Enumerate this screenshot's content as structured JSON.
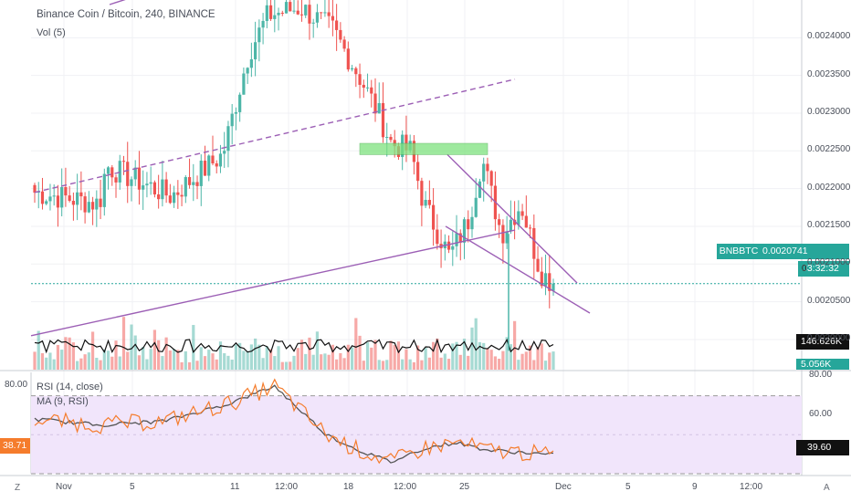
{
  "header": {
    "title": "Binance Coin / Bitcoin, 240, BINANCE",
    "volume_label": "Vol (5)"
  },
  "rsi_header": {
    "label": "RSI (14, close)",
    "ma_label": "MA (9, RSI)"
  },
  "price_scale": {
    "ticks": [
      "0.0024000",
      "0.0023500",
      "0.0023000",
      "0.0022500",
      "0.0022000",
      "0.0021500",
      "0.0021000",
      "0.0020500",
      "0.0020000"
    ]
  },
  "price_labels": {
    "symbol": "BNBBTC",
    "last_price": "0.0020741",
    "countdown": "03:32:32",
    "volume_ma": "146.626K",
    "volume": "5.056K",
    "partial_prefix": "0"
  },
  "rsi_scale": {
    "ticks": [
      "80.00",
      "60.00"
    ],
    "rsi_value": "39.60",
    "left_level": "80.00",
    "left_value": "38.71"
  },
  "time_axis": {
    "labels": [
      "Nov",
      "5",
      "11",
      "12:00",
      "18",
      "12:00",
      "25",
      "Dec",
      "5",
      "9",
      "12:00"
    ]
  },
  "corner_left": "Z",
  "corner_right": "A",
  "colors": {
    "up": "#4db6a8",
    "down": "#ef5350",
    "trendline": "#9c5fb5",
    "zone": "#7ee27e",
    "rsi_band": "#f1e5fb",
    "rsi_line": "#f57c2c",
    "rsi_ma": "#555555",
    "last_price": "#26a69a"
  },
  "chart_data": {
    "type": "candlestick",
    "symbol": "BNBBTC",
    "interval": "240",
    "exchange": "BINANCE",
    "last_close": 0.0020741,
    "price_range": [
      0.00196,
      0.00245
    ],
    "rsi_range": [
      30,
      80
    ],
    "rsi_levels": [
      70,
      30
    ],
    "rsi_last": 39.6,
    "series": [
      {
        "name": "price_anchors",
        "x": [
          0,
          0.1,
          0.11,
          0.21,
          0.29,
          0.33,
          0.36,
          0.41,
          0.46,
          0.5,
          0.53,
          0.55,
          0.58,
          0.6,
          0.64,
          0.67,
          0.69,
          0.72,
          0.75,
          0.78,
          0.8
        ],
        "values": [
          0.002195,
          0.00218,
          0.00223,
          0.00219,
          0.002245,
          0.00238,
          0.00243,
          0.00244,
          0.00241,
          0.00235,
          0.0023,
          0.00226,
          0.00225,
          0.00218,
          0.00211,
          0.00216,
          0.00224,
          0.00214,
          0.00218,
          0.00209,
          0.002074
        ]
      },
      {
        "name": "rsi_anchors",
        "x": [
          0,
          0.1,
          0.2,
          0.3,
          0.37,
          0.45,
          0.5,
          0.55,
          0.6,
          0.65,
          0.7,
          0.75,
          0.8
        ],
        "values": [
          58,
          55,
          57,
          66,
          75,
          50,
          42,
          36,
          43,
          46,
          42,
          41,
          39.6
        ]
      }
    ]
  }
}
